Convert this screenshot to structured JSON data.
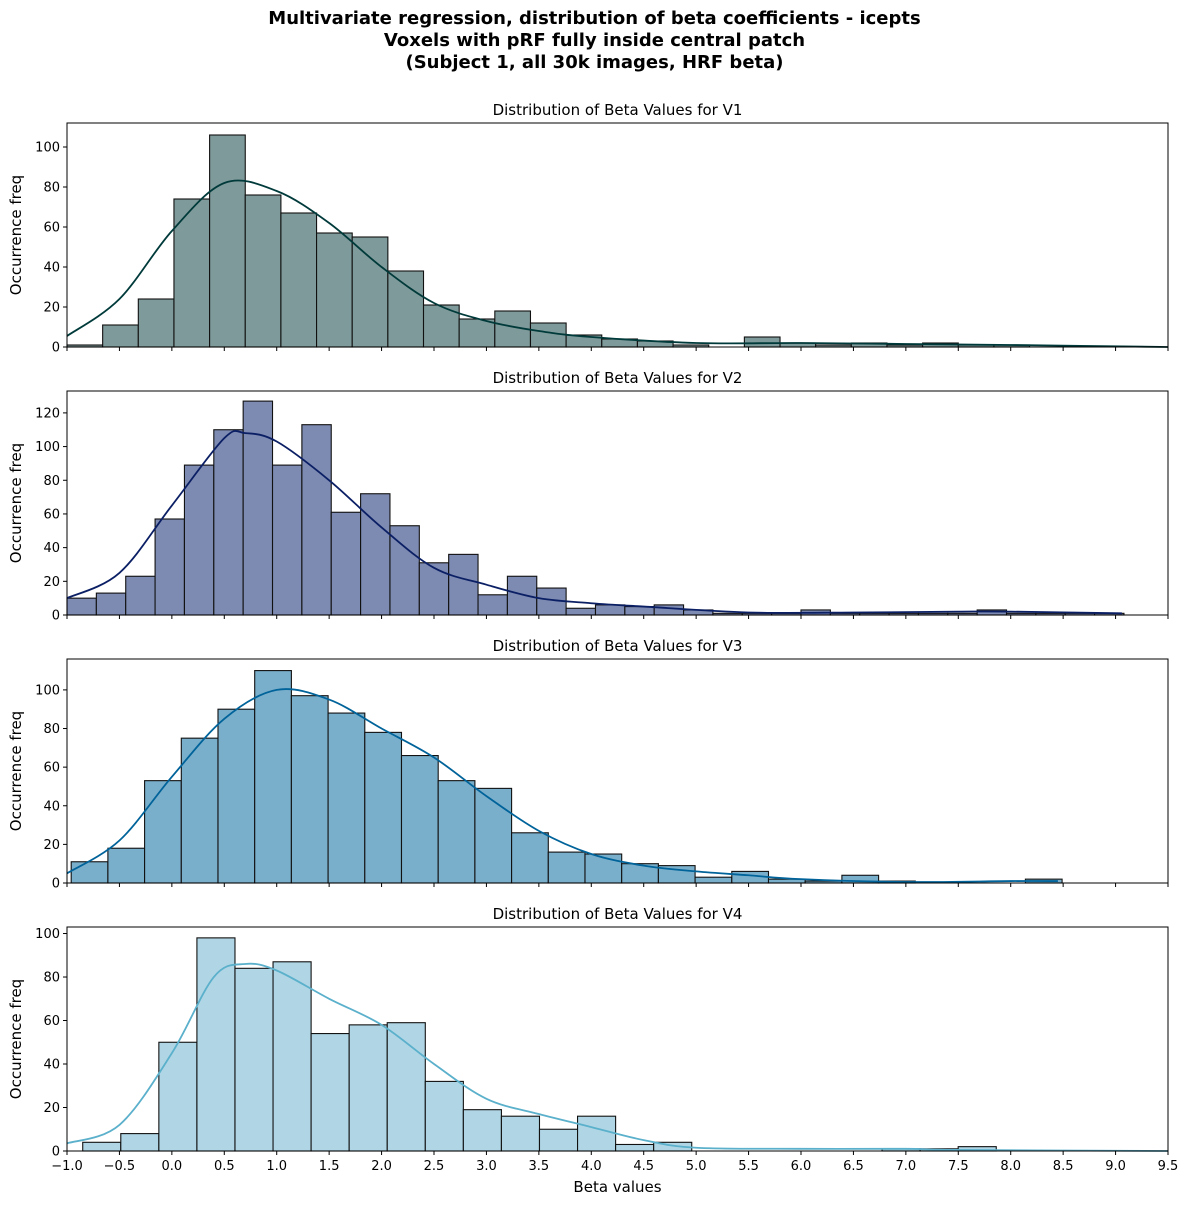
{
  "figure": {
    "title_lines": [
      "Multivariate regression, distribution of beta coefficients - icepts",
      "Voxels with pRF fully inside central patch",
      "(Subject 1, all 30k images, HRF beta)"
    ]
  },
  "chart_data": [
    {
      "type": "bar",
      "subtype": "histogram-with-kde",
      "title": "Distribution of Beta Values for V1",
      "ylabel": "Occurrence freq",
      "xlabel": "",
      "xlim": [
        -1.0,
        9.5
      ],
      "ylim": [
        0,
        112
      ],
      "yticks": [
        0,
        20,
        40,
        60,
        80,
        100
      ],
      "bar_color": "#7f9a9a",
      "kde_color": "#003a3a",
      "bin_start": -1.0,
      "bin_width": 0.34,
      "values": [
        1,
        11,
        24,
        74,
        106,
        76,
        67,
        57,
        55,
        38,
        21,
        14,
        18,
        12,
        6,
        4,
        3,
        1,
        0,
        5,
        2,
        1,
        2,
        1,
        2,
        1,
        1,
        0,
        0,
        0,
        0
      ],
      "kde": [
        [
          -1.0,
          5.5
        ],
        [
          -0.5,
          24
        ],
        [
          0.0,
          58
        ],
        [
          0.5,
          82
        ],
        [
          1.0,
          78
        ],
        [
          1.5,
          62
        ],
        [
          2.0,
          40
        ],
        [
          2.5,
          22
        ],
        [
          3.0,
          13
        ],
        [
          3.5,
          8
        ],
        [
          4.0,
          5
        ],
        [
          5.0,
          2
        ],
        [
          6.0,
          2
        ],
        [
          7.0,
          1.5
        ],
        [
          8.0,
          1
        ],
        [
          9.5,
          0
        ]
      ]
    },
    {
      "type": "bar",
      "subtype": "histogram-with-kde",
      "title": "Distribution of Beta Values for V2",
      "ylabel": "Occurrence freq",
      "xlabel": "",
      "xlim": [
        -1.0,
        9.5
      ],
      "ylim": [
        0,
        133
      ],
      "yticks": [
        0,
        20,
        40,
        60,
        80,
        100,
        120
      ],
      "bar_color": "#7d8ab1",
      "kde_color": "#0b1f65",
      "bin_start": -1.0,
      "bin_width": 0.28,
      "values": [
        10,
        13,
        23,
        57,
        89,
        110,
        127,
        89,
        113,
        61,
        72,
        53,
        31,
        36,
        12,
        23,
        16,
        4,
        6,
        5,
        6,
        3,
        1,
        1,
        1,
        3,
        1,
        1,
        1,
        1,
        1,
        3,
        1,
        1,
        1,
        1
      ],
      "kde": [
        [
          -1.0,
          10
        ],
        [
          -0.5,
          25
        ],
        [
          0.0,
          65
        ],
        [
          0.5,
          105
        ],
        [
          0.7,
          108
        ],
        [
          1.0,
          103
        ],
        [
          1.5,
          80
        ],
        [
          2.0,
          52
        ],
        [
          2.5,
          28
        ],
        [
          3.0,
          18
        ],
        [
          3.5,
          10
        ],
        [
          4.0,
          7
        ],
        [
          4.5,
          5
        ],
        [
          5.5,
          1.5
        ],
        [
          6.5,
          1.5
        ],
        [
          7.5,
          2
        ],
        [
          8.0,
          2
        ],
        [
          9.06,
          1
        ]
      ]
    },
    {
      "type": "bar",
      "subtype": "histogram-with-kde",
      "title": "Distribution of Beta Values for V3",
      "ylabel": "Occurrence freq",
      "xlabel": "",
      "xlim": [
        -1.0,
        9.5
      ],
      "ylim": [
        0,
        116
      ],
      "yticks": [
        0,
        20,
        40,
        60,
        80,
        100
      ],
      "bar_color": "#7aafcb",
      "kde_color": "#00639a",
      "bin_start": -0.96,
      "bin_width": 0.35,
      "values": [
        11,
        18,
        53,
        75,
        90,
        110,
        97,
        88,
        78,
        66,
        53,
        49,
        26,
        16,
        15,
        10,
        9,
        3,
        6,
        2,
        1,
        4,
        1,
        0,
        0,
        0,
        2
      ],
      "kde": [
        [
          -1.0,
          5
        ],
        [
          -0.5,
          22
        ],
        [
          0.0,
          55
        ],
        [
          0.5,
          85
        ],
        [
          1.0,
          100
        ],
        [
          1.5,
          95
        ],
        [
          2.0,
          80
        ],
        [
          2.5,
          65
        ],
        [
          3.0,
          45
        ],
        [
          3.5,
          27
        ],
        [
          4.0,
          15
        ],
        [
          4.5,
          9
        ],
        [
          5.0,
          6
        ],
        [
          5.5,
          4
        ],
        [
          6.0,
          2
        ],
        [
          7.0,
          0.5
        ],
        [
          8.0,
          1
        ],
        [
          8.45,
          1
        ]
      ]
    },
    {
      "type": "bar",
      "subtype": "histogram-with-kde",
      "title": "Distribution of Beta Values for V4",
      "ylabel": "Occurrence freq",
      "xlabel": "Beta values",
      "xlim": [
        -1.0,
        9.5
      ],
      "ylim": [
        0,
        103
      ],
      "yticks": [
        0,
        20,
        40,
        60,
        80,
        100
      ],
      "xticks": [
        "−1.0",
        "−0.5",
        "0.0",
        "0.5",
        "1.0",
        "1.5",
        "2.0",
        "2.5",
        "3.0",
        "3.5",
        "4.0",
        "4.5",
        "5.0",
        "5.5",
        "6.0",
        "6.5",
        "7.0",
        "7.5",
        "8.0",
        "8.5",
        "9.0",
        "9.5"
      ],
      "bar_color": "#b0d6e5",
      "kde_color": "#5bb0cb",
      "bin_start": -0.85,
      "bin_width": 0.363,
      "values": [
        4,
        8,
        50,
        98,
        84,
        87,
        54,
        58,
        59,
        32,
        19,
        16,
        10,
        16,
        3,
        4,
        0,
        0,
        0,
        0,
        0,
        1,
        1,
        2,
        0,
        0,
        0,
        0
      ],
      "kde": [
        [
          -1.0,
          3.5
        ],
        [
          -0.5,
          12
        ],
        [
          0.0,
          45
        ],
        [
          0.4,
          80
        ],
        [
          0.7,
          86
        ],
        [
          1.0,
          83
        ],
        [
          1.5,
          70
        ],
        [
          2.0,
          58
        ],
        [
          2.5,
          40
        ],
        [
          3.0,
          24
        ],
        [
          3.5,
          17
        ],
        [
          4.0,
          11
        ],
        [
          4.5,
          5
        ],
        [
          5.0,
          1.5
        ],
        [
          6.0,
          1
        ],
        [
          7.0,
          1
        ],
        [
          7.5,
          0.5
        ],
        [
          9.5,
          0
        ]
      ]
    }
  ]
}
